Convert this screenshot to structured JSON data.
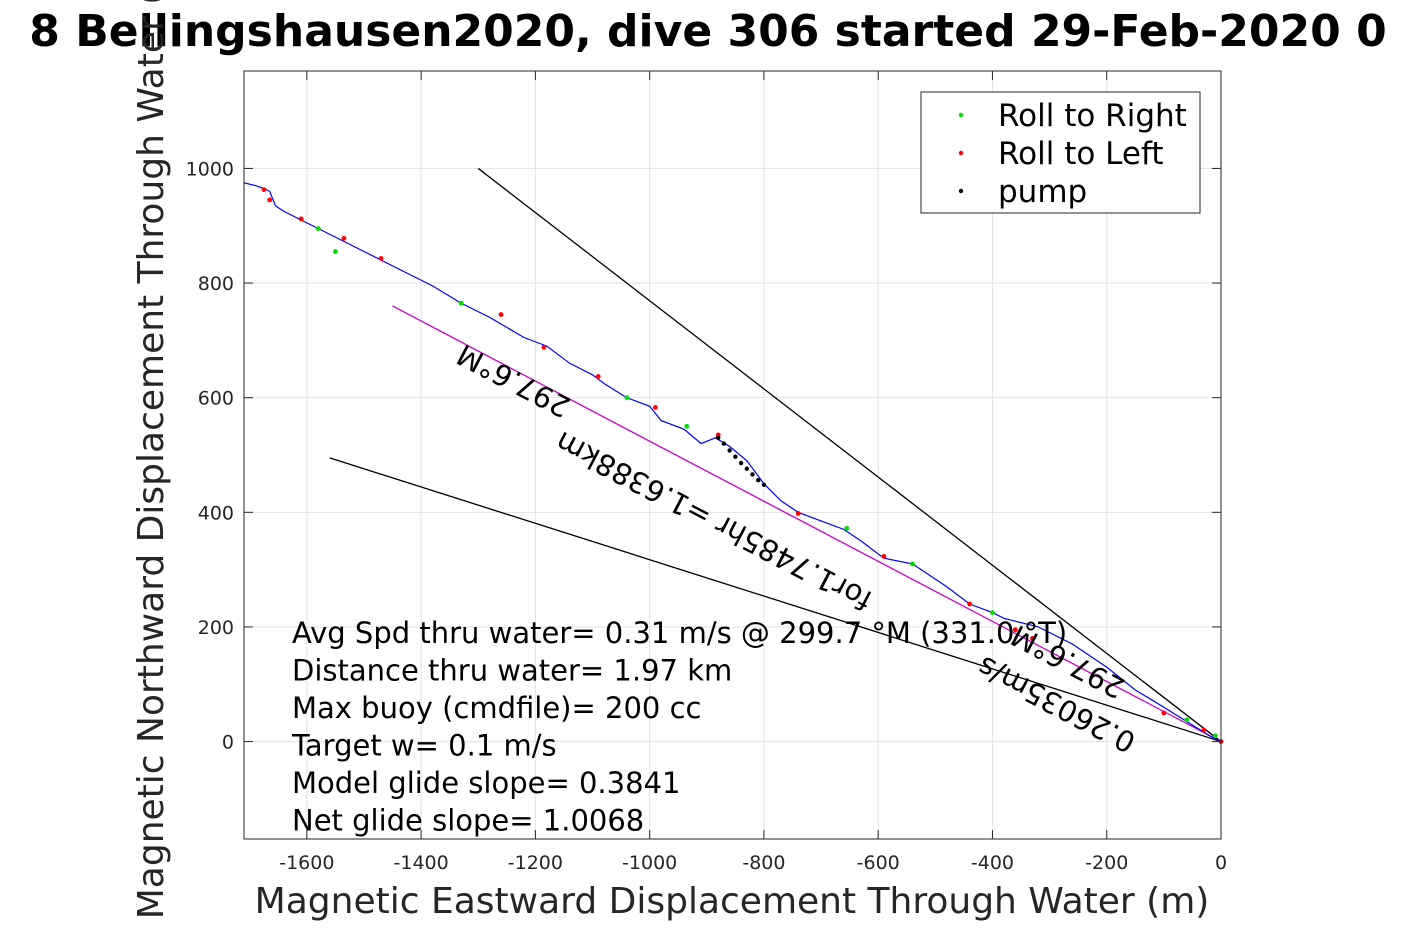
{
  "chart_data": {
    "type": "line",
    "title": "8 Bellingshausen2020, dive 306 started 29-Feb-2020 0",
    "xlabel": "Magnetic Eastward Displacement Through Water (m)",
    "ylabel": "Magnetic Northward Displacement Through Water (",
    "xlim": [
      -1710,
      0
    ],
    "ylim": [
      -170,
      1170
    ],
    "xticks": [
      -1600,
      -1400,
      -1200,
      -1000,
      -800,
      -600,
      -400,
      -200,
      0
    ],
    "yticks": [
      0,
      200,
      400,
      600,
      800,
      1000
    ],
    "grid": true,
    "legend_position": "top-right",
    "legend": [
      {
        "label": "Roll to Right",
        "color": "#00dd00"
      },
      {
        "label": "Roll to Left",
        "color": "#ff0000"
      },
      {
        "label": "pump",
        "color": "#000000"
      }
    ],
    "track": {
      "color": "#0000ff",
      "x": [
        0,
        -20,
        -60,
        -100,
        -150,
        -200,
        -260,
        -320,
        -380,
        -400,
        -440,
        -480,
        -540,
        -590,
        -630,
        -660,
        -700,
        -740,
        -770,
        -800,
        -830,
        -860,
        -885,
        -910,
        -940,
        -980,
        -1000,
        -1040,
        -1080,
        -1100,
        -1140,
        -1180,
        -1220,
        -1280,
        -1330,
        -1380,
        -1420,
        -1470,
        -1530,
        -1580,
        -1610,
        -1640,
        -1655,
        -1665,
        -1675,
        -1690,
        -1710
      ],
      "y": [
        0,
        10,
        35,
        60,
        90,
        130,
        170,
        200,
        215,
        225,
        240,
        270,
        310,
        320,
        350,
        370,
        385,
        400,
        420,
        450,
        490,
        515,
        530,
        520,
        545,
        560,
        585,
        600,
        625,
        640,
        660,
        690,
        705,
        740,
        765,
        795,
        815,
        840,
        870,
        895,
        910,
        925,
        935,
        960,
        965,
        970,
        975
      ]
    },
    "straight_lines": [
      {
        "name": "heading-line",
        "color": "#cc00cc",
        "x1": 0,
        "y1": 0,
        "x2": -1450,
        "y2": 760
      },
      {
        "name": "upper-glide-bound",
        "color": "#000000",
        "x1": 0,
        "y1": 0,
        "x2": -1300,
        "y2": 1000
      },
      {
        "name": "lower-glide-bound",
        "color": "#000000",
        "x1": 0,
        "y1": 0,
        "x2": -1560,
        "y2": 495
      }
    ],
    "roll_right_points": {
      "x": [
        -1580,
        -1550,
        -1330,
        -1040,
        -935,
        -655,
        -540,
        -400,
        -60,
        -10
      ],
      "y": [
        895,
        855,
        765,
        600,
        550,
        372,
        310,
        225,
        38,
        10
      ]
    },
    "roll_left_points": {
      "x": [
        -1675,
        -1665,
        -1610,
        -1535,
        -1470,
        -1260,
        -1185,
        -1090,
        -990,
        -880,
        -740,
        -590,
        -440,
        -360,
        -330,
        -100,
        -30,
        0
      ],
      "y": [
        963,
        945,
        912,
        878,
        843,
        745,
        688,
        637,
        583,
        535,
        398,
        323,
        240,
        195,
        180,
        50,
        20,
        0
      ]
    },
    "pump_points": {
      "x": [
        -880,
        -870,
        -860,
        -850,
        -840,
        -830,
        -820,
        -810,
        -800
      ],
      "y": [
        530,
        520,
        508,
        497,
        486,
        476,
        466,
        456,
        448
      ]
    },
    "stats": [
      "Avg Spd thru water=  0.31 m/s @ 299.7 °M (331.0 °T)",
      "Distance thru water=  1.97 km",
      "Max buoy (cmdfile)= 200 cc",
      "Target w= 0.1 m/s",
      "Model glide slope= 0.3841",
      "Net glide slope= 1.0068"
    ],
    "annotations": [
      {
        "text": "297.6°M",
        "x": -1230,
        "y": 645,
        "rotate": 207.6
      },
      {
        "text": "for1.7485hr =1.6388km",
        "x": -880,
        "y": 400,
        "rotate": 207.6
      },
      {
        "text": "297.6°M",
        "x": -260,
        "y": 155,
        "rotate": 207.6
      },
      {
        "text": "0.26035m/s",
        "x": -280,
        "y": 80,
        "rotate": 207.6
      }
    ]
  }
}
